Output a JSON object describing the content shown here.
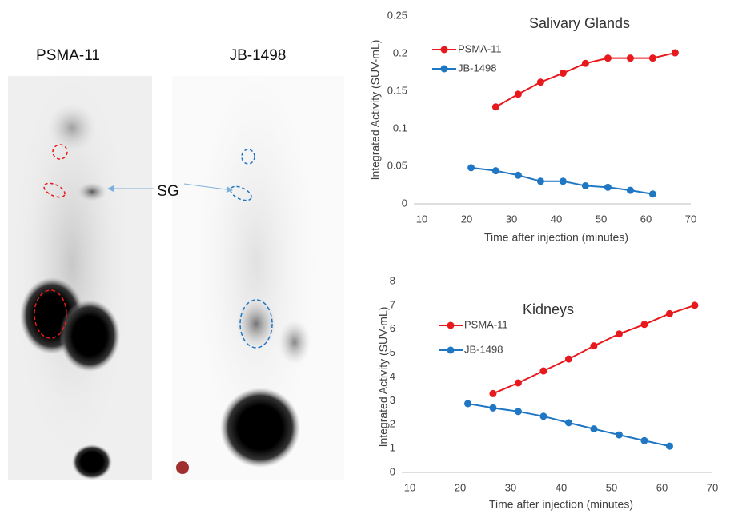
{
  "images": [
    {
      "label": "PSMA-11"
    },
    {
      "label": "JB-1498"
    }
  ],
  "annotation": "SG",
  "chart_data": [
    {
      "type": "line",
      "title": "Salivary Glands",
      "x_label": "Time after injection (minutes)",
      "y_label": "Integrated Activity (SUV-mL)",
      "xlim": [
        10,
        70
      ],
      "xticks": [
        10,
        20,
        30,
        40,
        50,
        60,
        70
      ],
      "ylim": [
        0,
        0.25
      ],
      "yticks": [
        0,
        0.05,
        0.1,
        0.15,
        0.2,
        0.25
      ],
      "series": [
        {
          "name": "PSMA-11",
          "color": "#e8191c",
          "x": [
            26.5,
            31.5,
            36.5,
            41.5,
            46.5,
            51.5,
            56.5,
            61.5,
            66.5
          ],
          "values": [
            0.129,
            0.146,
            0.162,
            0.174,
            0.187,
            0.194,
            0.194,
            0.194,
            0.201
          ]
        },
        {
          "name": "JB-1498",
          "color": "#1f77c4",
          "x": [
            21,
            26.5,
            31.5,
            36.5,
            41.5,
            46.5,
            51.5,
            56.5,
            61.5
          ],
          "values": [
            0.048,
            0.044,
            0.038,
            0.03,
            0.03,
            0.024,
            0.022,
            0.018,
            0.013
          ]
        }
      ]
    },
    {
      "type": "line",
      "title": "Kidneys",
      "x_label": "Time after injection (minutes)",
      "y_label": "Integrated Activity (SUV-mL)",
      "xlim": [
        10,
        70
      ],
      "xticks": [
        10,
        20,
        30,
        40,
        50,
        60,
        70
      ],
      "ylim": [
        0,
        8
      ],
      "yticks": [
        0,
        1,
        2,
        3,
        4,
        5,
        6,
        7,
        8
      ],
      "series": [
        {
          "name": "PSMA-11",
          "color": "#e8191c",
          "x": [
            26.5,
            31.5,
            36.5,
            41.5,
            46.5,
            51.5,
            56.5,
            61.5,
            66.5
          ],
          "values": [
            3.3,
            3.75,
            4.25,
            4.75,
            5.3,
            5.8,
            6.2,
            6.65,
            7.0
          ]
        },
        {
          "name": "JB-1498",
          "color": "#1f77c4",
          "x": [
            21.5,
            26.5,
            31.5,
            36.5,
            41.5,
            46.5,
            51.5,
            56.5,
            61.5
          ],
          "values": [
            2.88,
            2.7,
            2.55,
            2.35,
            2.08,
            1.82,
            1.57,
            1.33,
            1.1
          ]
        }
      ]
    }
  ]
}
